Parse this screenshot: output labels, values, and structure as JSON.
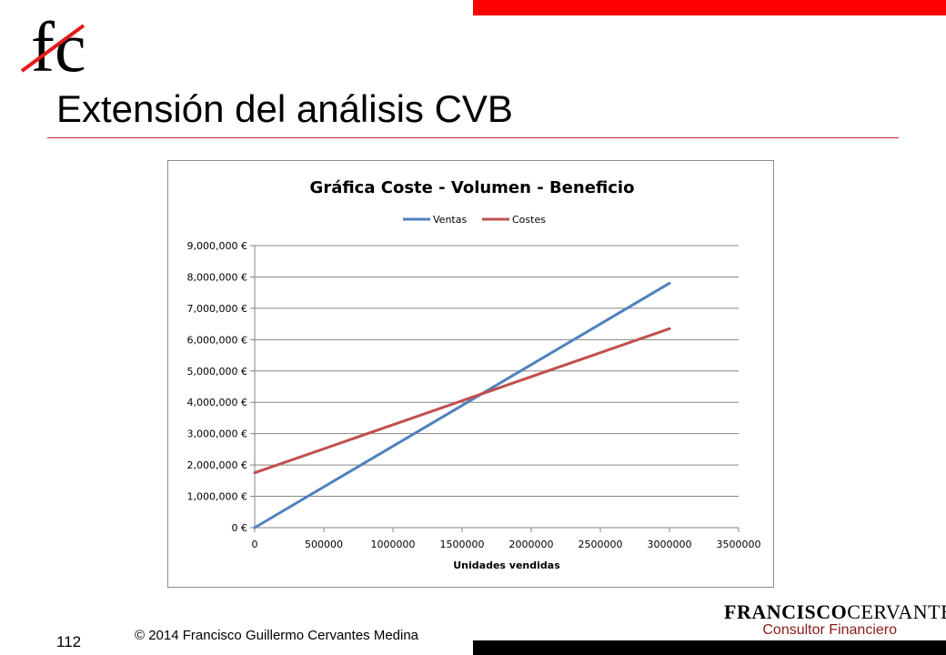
{
  "slide": {
    "title": "Extensión del análisis CVB",
    "page_number": "112",
    "copyright": "© 2014 Francisco Guillermo Cervantes Medina",
    "logo_text": "fc",
    "brand_name_bold": "FRANCISCO",
    "brand_name_regular": "CERVANTES",
    "brand_subtitle": "Consultor Financiero",
    "colors": {
      "accent_red": "#ff0000",
      "rule_red": "#c0302f",
      "brand_subtitle": "#8b1a1a"
    }
  },
  "chart_data": {
    "type": "line",
    "title": "Gráfica Coste - Volumen - Beneficio",
    "xlabel": "Unidades vendidas",
    "ylabel": "",
    "xlim": [
      0,
      3500000
    ],
    "ylim": [
      0,
      9000000
    ],
    "x_ticks": [
      0,
      500000,
      1000000,
      1500000,
      2000000,
      2500000,
      3000000,
      3500000
    ],
    "x_tick_labels": [
      "0",
      "500000",
      "1000000",
      "1500000",
      "2000000",
      "2500000",
      "3000000",
      "3500000"
    ],
    "y_ticks": [
      0,
      1000000,
      2000000,
      3000000,
      4000000,
      5000000,
      6000000,
      7000000,
      8000000,
      9000000
    ],
    "y_tick_labels": [
      "0 €",
      "1,000,000 €",
      "2,000,000 €",
      "3,000,000 €",
      "4,000,000 €",
      "5,000,000 €",
      "6,000,000 €",
      "7,000,000 €",
      "8,000,000 €",
      "9,000,000 €"
    ],
    "grid": "horizontal",
    "legend_position": "top",
    "series": [
      {
        "name": "Ventas",
        "color": "#4f81bd",
        "x": [
          0,
          3000000
        ],
        "y": [
          0,
          7800000
        ]
      },
      {
        "name": "Costes",
        "color": "#c0504d",
        "x": [
          0,
          3000000
        ],
        "y": [
          1750000,
          6350000
        ]
      }
    ]
  }
}
